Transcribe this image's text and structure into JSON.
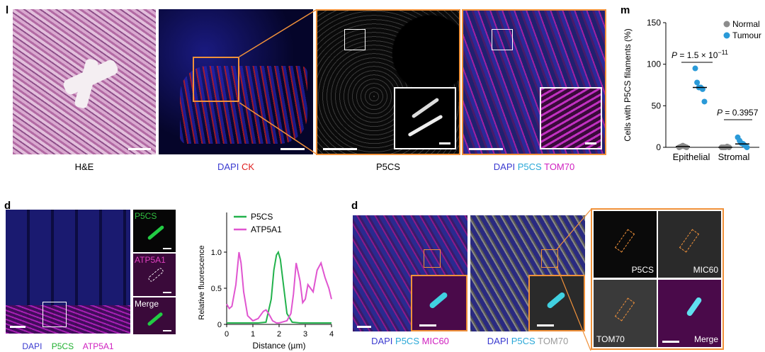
{
  "panel_l": {
    "label": "l",
    "captions": {
      "he": "H&E",
      "dapi": "DAPI",
      "ck": "CK",
      "p5cs": "P5CS",
      "merge_dapi": "DAPI",
      "merge_p5cs": "P5CS",
      "merge_tom70": "TOM70"
    },
    "colors": {
      "dapi": "#3a3ad0",
      "ck": "#e02020",
      "p5cs": "#2aa8d8",
      "tom70": "#d020c0"
    }
  },
  "panel_m": {
    "label": "m",
    "ylabel": "Cells with P5CS filaments (%)",
    "legend": [
      {
        "name": "Normal",
        "color": "#8c8c8c"
      },
      {
        "name": "Tumour",
        "color": "#2a9ad8"
      }
    ],
    "pvalue_epithelial": {
      "prefix": "P",
      "text": " = 1.5 × 10",
      "exp": "−11"
    },
    "pvalue_stromal": {
      "prefix": "P",
      "text": " = 0.3957"
    }
  },
  "chart_data": {
    "type": "scatter",
    "categories": [
      "Epithelial",
      "Stromal"
    ],
    "ylim": [
      0,
      150
    ],
    "yticks": [
      0,
      50,
      100,
      150
    ],
    "series": [
      {
        "name": "Normal",
        "color": "#8c8c8c",
        "values": [
          [
            0,
            1,
            2,
            1,
            0
          ],
          [
            0,
            0,
            0,
            1,
            0
          ]
        ],
        "medians": [
          1,
          0
        ]
      },
      {
        "name": "Tumour",
        "color": "#2a9ad8",
        "values": [
          [
            95,
            78,
            72,
            72,
            70,
            55
          ],
          [
            12,
            8,
            5,
            4,
            2,
            0
          ]
        ],
        "medians": [
          72,
          4
        ]
      }
    ]
  },
  "panel_d1": {
    "label": "d",
    "insets": [
      "P5CS",
      "ATP5A1",
      "Merge"
    ],
    "captions": {
      "dapi": "DAPI",
      "p5cs": "P5CS",
      "atp": "ATP5A1"
    },
    "colors": {
      "dapi": "#3a3ad0",
      "p5cs": "#20b030",
      "atp": "#d020c0"
    }
  },
  "line_chart": {
    "type": "line",
    "xlabel": "Distance (µm)",
    "ylabel": "Relative fluorescence",
    "xlim": [
      0,
      4
    ],
    "ylim": [
      0,
      1.0
    ],
    "xticks": [
      0,
      1,
      2,
      3,
      4
    ],
    "yticks": [
      0,
      0.5,
      1.0
    ],
    "ytick_labels": [
      "0",
      "0.5",
      "1.0"
    ],
    "series": [
      {
        "name": "P5CS",
        "color": "#22b24c",
        "x": [
          0,
          0.3,
          0.6,
          0.9,
          1.2,
          1.5,
          1.7,
          1.8,
          1.9,
          1.97,
          2.05,
          2.15,
          2.3,
          2.5,
          2.8,
          3.1,
          3.4,
          3.7,
          4.0
        ],
        "y": [
          0.02,
          0.02,
          0.02,
          0.02,
          0.02,
          0.03,
          0.35,
          0.75,
          0.96,
          1.0,
          0.9,
          0.6,
          0.15,
          0.03,
          0.02,
          0.02,
          0.02,
          0.02,
          0.02
        ]
      },
      {
        "name": "ATP5A1",
        "color": "#e055d0",
        "x": [
          0,
          0.1,
          0.2,
          0.35,
          0.47,
          0.55,
          0.65,
          0.8,
          1.0,
          1.2,
          1.4,
          1.5,
          1.6,
          1.75,
          1.9,
          2.0,
          2.1,
          2.3,
          2.45,
          2.55,
          2.65,
          2.8,
          2.9,
          3.0,
          3.1,
          3.2,
          3.3,
          3.45,
          3.6,
          3.75,
          3.9,
          4.0
        ],
        "y": [
          0.28,
          0.22,
          0.25,
          0.55,
          1.0,
          0.85,
          0.45,
          0.12,
          0.05,
          0.08,
          0.18,
          0.2,
          0.15,
          0.05,
          0.02,
          0.02,
          0.03,
          0.05,
          0.15,
          0.42,
          0.85,
          0.6,
          0.3,
          0.35,
          0.55,
          0.5,
          0.45,
          0.75,
          0.85,
          0.65,
          0.5,
          0.35
        ]
      }
    ]
  },
  "panel_d2": {
    "label": "d",
    "captions_left": {
      "dapi": "DAPI",
      "p5cs": "P5CS",
      "mic": "MIC60"
    },
    "captions_mid": {
      "dapi": "DAPI",
      "p5cs": "P5CS",
      "tom": "TOM70"
    },
    "grid_labels": [
      "P5CS",
      "MIC60",
      "TOM70",
      "Merge"
    ],
    "colors": {
      "dapi": "#3a3ad0",
      "p5cs": "#2aa8d8",
      "mic": "#d020c0",
      "tom": "#9a9a9a"
    }
  }
}
